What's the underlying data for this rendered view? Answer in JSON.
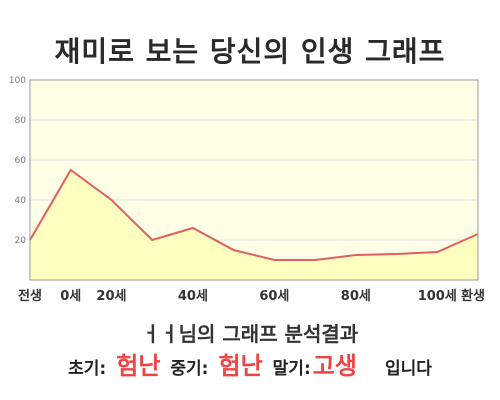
{
  "title": "재미로 보는 당신의 인생 그래프",
  "summary": "ㅓㅓ님의 그래프 분석결과",
  "result": {
    "early_label": "초기:",
    "early_value": "험난",
    "mid_label": "중기:",
    "mid_value": "험난",
    "late_label": "말기:",
    "late_value": "고생",
    "tail": "입니다"
  },
  "colors": {
    "plot_background": "#ffffe8",
    "area_fill": "#ffffc0",
    "line": "#e06060",
    "grid": "#dddddd",
    "highlight": "#ee4444"
  },
  "chart_data": {
    "type": "area",
    "title": "",
    "xlabel": "",
    "ylabel": "",
    "ylim": [
      0,
      100
    ],
    "y_ticks": [
      20,
      40,
      60,
      80,
      100
    ],
    "x_ticks": [
      "전생",
      "0세",
      "20세",
      "40세",
      "60세",
      "80세",
      "100세",
      "환생"
    ],
    "x": [
      "전생",
      "0세",
      "20세",
      "30세",
      "40세",
      "50세",
      "60세",
      "70세",
      "80세",
      "90세",
      "100세",
      "환생"
    ],
    "values": [
      20,
      55,
      40,
      20,
      26,
      15,
      10,
      10,
      12.5,
      13,
      14,
      23
    ],
    "grid": true,
    "legend": "none"
  }
}
